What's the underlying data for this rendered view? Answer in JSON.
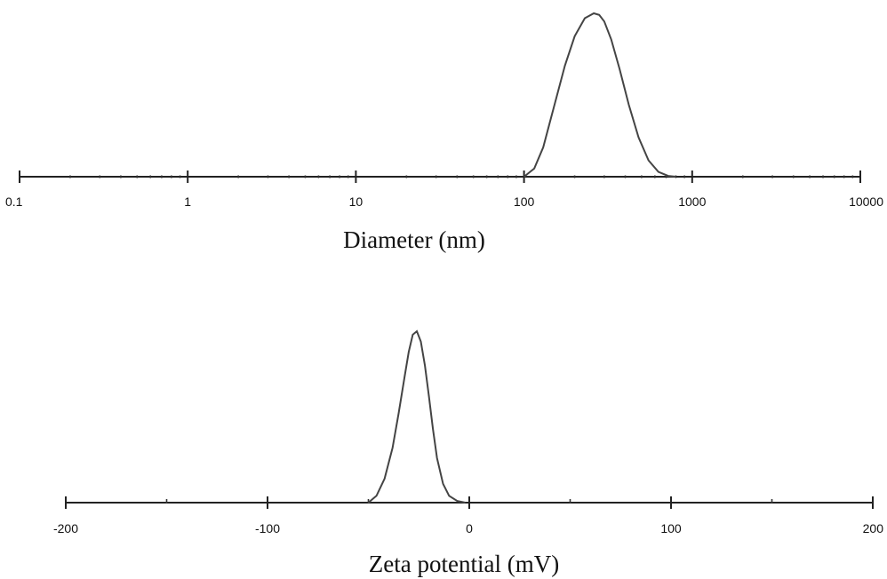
{
  "chart_data": [
    {
      "type": "line",
      "title": "",
      "xlabel": "Diameter (nm)",
      "ylabel": "",
      "x_scale": "log",
      "xlim": [
        0.1,
        10000
      ],
      "x_ticks": [
        0.1,
        1,
        10,
        100,
        1000,
        10000
      ],
      "x_tick_labels": [
        "0.1",
        "1",
        "10",
        "100",
        "1000",
        "10000"
      ],
      "y_axis_shown": false,
      "series": [
        {
          "x": [
            100,
            115,
            130,
            150,
            175,
            200,
            230,
            260,
            280,
            300,
            330,
            370,
            420,
            480,
            550,
            630,
            720,
            800
          ],
          "y": [
            0,
            0.05,
            0.18,
            0.42,
            0.68,
            0.86,
            0.97,
            1.0,
            0.99,
            0.95,
            0.84,
            0.66,
            0.44,
            0.24,
            0.1,
            0.03,
            0.005,
            0
          ]
        }
      ]
    },
    {
      "type": "line",
      "title": "",
      "xlabel": "Zeta potential (mV)",
      "ylabel": "",
      "xlim": [
        -200,
        200
      ],
      "x_ticks": [
        -200,
        -100,
        0,
        100,
        200
      ],
      "x_tick_labels": [
        "-200",
        "-100",
        "0",
        "100",
        "200"
      ],
      "x_minor_ticks": [
        -150,
        -50,
        50,
        150
      ],
      "y_axis_shown": false,
      "series": [
        {
          "x": [
            -50,
            -46,
            -42,
            -38,
            -35,
            -32,
            -30,
            -28,
            -26,
            -24,
            -22,
            -20,
            -18,
            -16,
            -13,
            -10,
            -6,
            -2
          ],
          "y": [
            0,
            0.04,
            0.14,
            0.32,
            0.52,
            0.74,
            0.88,
            0.98,
            1.0,
            0.94,
            0.8,
            0.62,
            0.43,
            0.26,
            0.11,
            0.04,
            0.01,
            0
          ]
        }
      ]
    }
  ]
}
